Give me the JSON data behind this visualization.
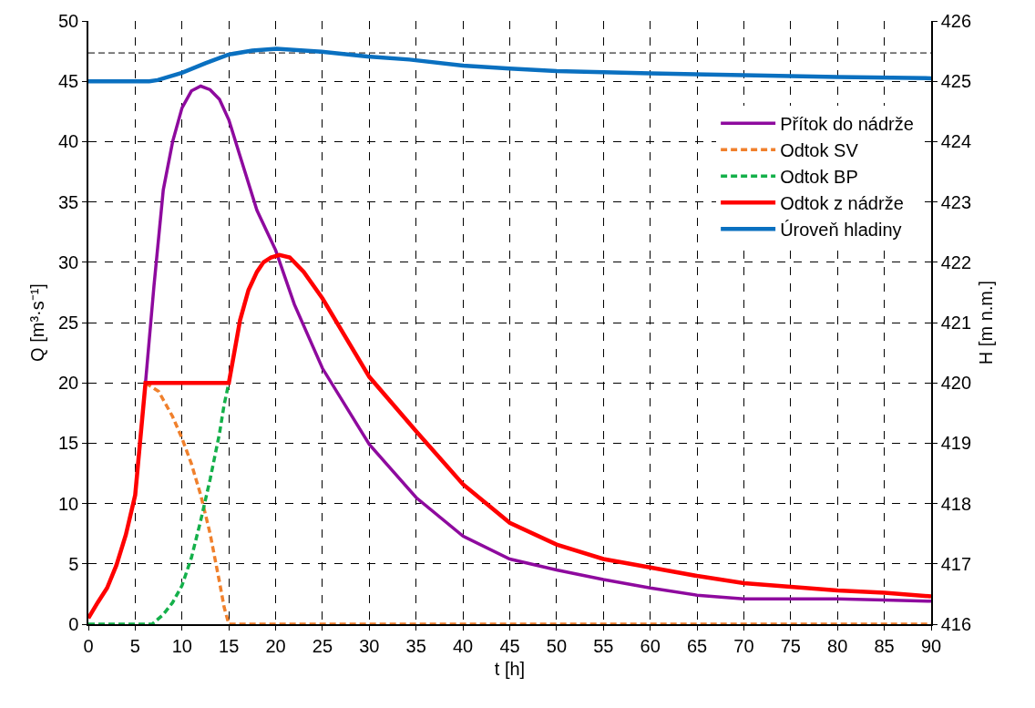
{
  "chart_data": {
    "type": "line",
    "xlabel": "t [h]",
    "ylabel": "Q [m³·s⁻¹]",
    "y2label": "H [m n.m.]",
    "xlim": [
      0,
      90
    ],
    "xticks": [
      0,
      5,
      10,
      15,
      20,
      25,
      30,
      35,
      40,
      45,
      50,
      55,
      60,
      65,
      70,
      75,
      80,
      85,
      90
    ],
    "ylim": [
      0,
      50
    ],
    "yticks": [
      0,
      5,
      10,
      15,
      20,
      25,
      30,
      35,
      40,
      45,
      50
    ],
    "y2lim": [
      416,
      426
    ],
    "y2ticks": [
      416,
      417,
      418,
      419,
      420,
      421,
      422,
      423,
      424,
      425,
      426
    ],
    "grid": true,
    "legend": "top right",
    "marker": "none",
    "ref_lines": [
      {
        "axis": "y2",
        "value": 425.47,
        "color": "#000000",
        "line_style": "dashed"
      }
    ],
    "series": [
      {
        "name": "Přítok do nádrže",
        "color": "#8e0a9e",
        "line_style": "solid",
        "x": [
          6.1,
          7,
          8,
          9,
          10,
          11,
          12,
          13,
          14,
          15,
          16,
          17,
          18,
          20,
          22,
          25,
          30,
          35,
          40,
          45,
          50,
          55,
          60,
          65,
          70,
          75,
          80,
          85,
          90
        ],
        "values": [
          20,
          28,
          36,
          40,
          42.8,
          44.2,
          44.6,
          44.3,
          43.5,
          41.8,
          39.3,
          36.8,
          34.3,
          31,
          26.5,
          21.2,
          14.9,
          10.5,
          7.3,
          5.4,
          4.5,
          3.7,
          3,
          2.4,
          2.1,
          2.1,
          2.1,
          2,
          1.9
        ]
      },
      {
        "name": "Odtok SV",
        "color": "#f0802c",
        "line_style": "dashed",
        "x": [
          6.1,
          7.5,
          9,
          10,
          11,
          12,
          13,
          14,
          14.5,
          15,
          20,
          30,
          40,
          50,
          60,
          70,
          80,
          90
        ],
        "values": [
          20,
          19.3,
          17.2,
          15.4,
          13.3,
          10.7,
          7.5,
          3.5,
          1.4,
          0,
          0,
          0,
          0,
          0,
          0,
          0,
          0,
          0
        ]
      },
      {
        "name": "Odtok BP",
        "color": "#14b04a",
        "line_style": "dashed",
        "x": [
          0,
          5,
          6.8,
          8,
          9,
          10,
          11,
          12,
          13,
          14,
          14.5,
          15
        ],
        "values": [
          0,
          0,
          0,
          0.8,
          1.8,
          3.2,
          5.5,
          8.6,
          12,
          15.8,
          18.2,
          20
        ]
      },
      {
        "name": "Odtok z nádrže",
        "color": "#ff0000",
        "line_style": "solid",
        "x": [
          0,
          1,
          2,
          3,
          4,
          5,
          6.1,
          10,
          15,
          16.2,
          17.1,
          18,
          18.7,
          19.5,
          20.4,
          21.5,
          23,
          25,
          30,
          35,
          40,
          45,
          50,
          55,
          60,
          65,
          70,
          75,
          80,
          85,
          90
        ],
        "values": [
          0.5,
          1.8,
          3,
          4.9,
          7.4,
          10.7,
          20,
          20,
          20,
          25.2,
          27.7,
          29.2,
          30,
          30.4,
          30.6,
          30.4,
          29.2,
          27,
          20.5,
          16,
          11.6,
          8.4,
          6.6,
          5.4,
          4.7,
          4,
          3.4,
          3.1,
          2.8,
          2.6,
          2.3
        ]
      },
      {
        "name": "Úroveň hladiny",
        "color": "#0a70c0",
        "line_style": "solid",
        "axis": "y2",
        "x": [
          0,
          5,
          6.5,
          7.4,
          10,
          12.5,
          14.9,
          17.5,
          20.1,
          24.9,
          29.8,
          34.3,
          40,
          45,
          50,
          60,
          70,
          80,
          90
        ],
        "values": [
          425,
          425,
          425,
          425.02,
          425.14,
          425.3,
          425.44,
          425.51,
          425.54,
          425.49,
          425.41,
          425.36,
          425.26,
          425.21,
          425.17,
          425.13,
          425.1,
          425.07,
          425.05
        ]
      }
    ]
  }
}
